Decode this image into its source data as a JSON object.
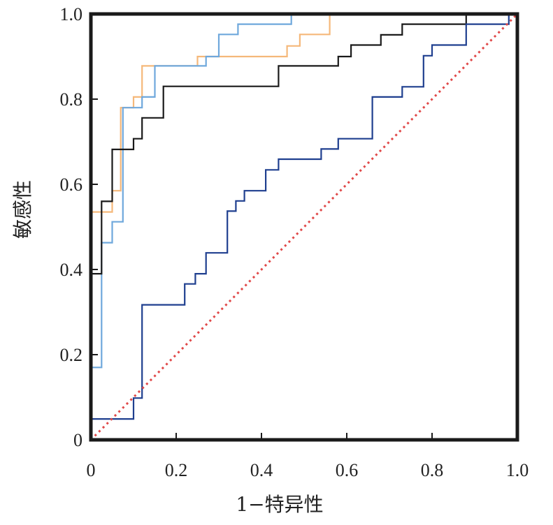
{
  "chart_data": {
    "type": "line",
    "title": "",
    "xlabel": "1−特异性",
    "ylabel": "敏感性",
    "xlim": [
      0,
      1
    ],
    "ylim": [
      0,
      1
    ],
    "x_ticks": [
      "0",
      "0.2",
      "0.4",
      "0.6",
      "0.8",
      "1.0"
    ],
    "y_ticks": [
      "0",
      "0.2",
      "0.4",
      "0.6",
      "0.8",
      "1.0"
    ],
    "grid": false,
    "legend": "none",
    "series": [
      {
        "color": "#f5b87a",
        "step": true,
        "points": [
          [
            0,
            0
          ],
          [
            0,
            0.535
          ],
          [
            0.05,
            0.535
          ],
          [
            0.05,
            0.585
          ],
          [
            0.07,
            0.585
          ],
          [
            0.07,
            0.78
          ],
          [
            0.1,
            0.78
          ],
          [
            0.1,
            0.805
          ],
          [
            0.12,
            0.805
          ],
          [
            0.12,
            0.878
          ],
          [
            0.25,
            0.878
          ],
          [
            0.25,
            0.9
          ],
          [
            0.46,
            0.9
          ],
          [
            0.46,
            0.925
          ],
          [
            0.49,
            0.925
          ],
          [
            0.49,
            0.952
          ],
          [
            0.56,
            0.952
          ],
          [
            0.56,
            1.0
          ],
          [
            1.0,
            1.0
          ]
        ]
      },
      {
        "color": "#6fa8dc",
        "step": true,
        "points": [
          [
            0,
            0
          ],
          [
            0,
            0.17
          ],
          [
            0.025,
            0.17
          ],
          [
            0.025,
            0.463
          ],
          [
            0.05,
            0.463
          ],
          [
            0.05,
            0.512
          ],
          [
            0.075,
            0.512
          ],
          [
            0.075,
            0.78
          ],
          [
            0.12,
            0.78
          ],
          [
            0.12,
            0.805
          ],
          [
            0.15,
            0.805
          ],
          [
            0.15,
            0.878
          ],
          [
            0.27,
            0.878
          ],
          [
            0.27,
            0.9
          ],
          [
            0.3,
            0.9
          ],
          [
            0.3,
            0.952
          ],
          [
            0.345,
            0.952
          ],
          [
            0.345,
            0.976
          ],
          [
            0.47,
            0.976
          ],
          [
            0.47,
            1.0
          ],
          [
            1.0,
            1.0
          ]
        ]
      },
      {
        "color": "#1a1a1a",
        "step": true,
        "points": [
          [
            0,
            0
          ],
          [
            0,
            0.39
          ],
          [
            0.025,
            0.39
          ],
          [
            0.025,
            0.56
          ],
          [
            0.05,
            0.56
          ],
          [
            0.05,
            0.585
          ],
          [
            0.05,
            0.682
          ],
          [
            0.1,
            0.682
          ],
          [
            0.1,
            0.707
          ],
          [
            0.12,
            0.707
          ],
          [
            0.12,
            0.756
          ],
          [
            0.17,
            0.756
          ],
          [
            0.17,
            0.83
          ],
          [
            0.44,
            0.83
          ],
          [
            0.44,
            0.878
          ],
          [
            0.58,
            0.878
          ],
          [
            0.58,
            0.9
          ],
          [
            0.61,
            0.9
          ],
          [
            0.61,
            0.927
          ],
          [
            0.68,
            0.927
          ],
          [
            0.68,
            0.951
          ],
          [
            0.73,
            0.951
          ],
          [
            0.73,
            0.976
          ],
          [
            0.88,
            0.976
          ],
          [
            0.88,
            1.0
          ],
          [
            1.0,
            1.0
          ]
        ]
      },
      {
        "color": "#1f3f8f",
        "step": true,
        "points": [
          [
            0,
            0
          ],
          [
            0,
            0.049
          ],
          [
            0.1,
            0.049
          ],
          [
            0.1,
            0.098
          ],
          [
            0.12,
            0.098
          ],
          [
            0.12,
            0.317
          ],
          [
            0.22,
            0.317
          ],
          [
            0.22,
            0.366
          ],
          [
            0.245,
            0.366
          ],
          [
            0.245,
            0.39
          ],
          [
            0.27,
            0.39
          ],
          [
            0.27,
            0.439
          ],
          [
            0.32,
            0.439
          ],
          [
            0.32,
            0.537
          ],
          [
            0.34,
            0.537
          ],
          [
            0.34,
            0.561
          ],
          [
            0.36,
            0.561
          ],
          [
            0.36,
            0.585
          ],
          [
            0.41,
            0.585
          ],
          [
            0.41,
            0.634
          ],
          [
            0.44,
            0.634
          ],
          [
            0.44,
            0.659
          ],
          [
            0.54,
            0.659
          ],
          [
            0.54,
            0.683
          ],
          [
            0.58,
            0.683
          ],
          [
            0.58,
            0.707
          ],
          [
            0.66,
            0.707
          ],
          [
            0.66,
            0.805
          ],
          [
            0.73,
            0.805
          ],
          [
            0.73,
            0.829
          ],
          [
            0.78,
            0.829
          ],
          [
            0.78,
            0.902
          ],
          [
            0.8,
            0.902
          ],
          [
            0.8,
            0.927
          ],
          [
            0.88,
            0.927
          ],
          [
            0.88,
            0.976
          ],
          [
            0.98,
            0.976
          ],
          [
            0.98,
            1.0
          ],
          [
            1.0,
            1.0
          ]
        ]
      },
      {
        "color": "#e04848",
        "dashed": true,
        "points": [
          [
            0,
            0
          ],
          [
            1,
            1
          ]
        ]
      }
    ]
  }
}
